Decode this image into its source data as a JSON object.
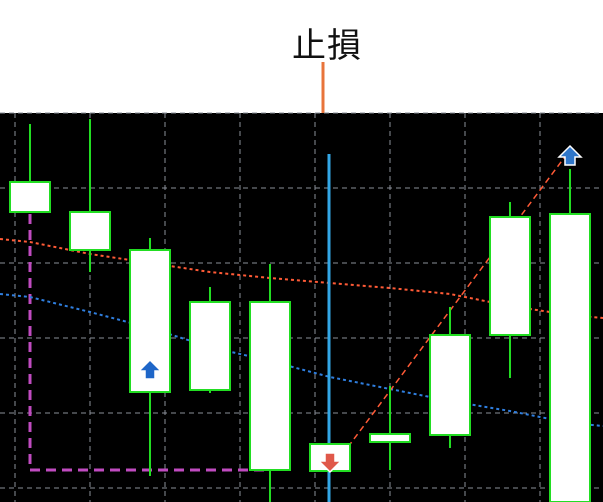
{
  "annotation": {
    "label": "止損",
    "arrow_color": "#e8743b"
  },
  "chart_data": {
    "type": "candlestick",
    "title": "",
    "xlabel": "",
    "ylabel": "",
    "ylim": [
      0,
      380
    ],
    "grid": true,
    "background": "#000000",
    "grid_color": "#8a8f99",
    "candle_border_color": "#22dd22",
    "candle_fill_color": "#ffffff",
    "wick_color": "#22dd22",
    "x": [
      1,
      2,
      3,
      4,
      5,
      6,
      7,
      8,
      9,
      10
    ],
    "candles": [
      {
        "x": 1,
        "open": 320,
        "close": 290,
        "high": 378,
        "low": 290
      },
      {
        "x": 2,
        "open": 290,
        "close": 252,
        "high": 383,
        "low": 230
      },
      {
        "x": 3,
        "open": 252,
        "close": 110,
        "high": 264,
        "low": 26
      },
      {
        "x": 4,
        "open": 200,
        "close": 112,
        "high": 215,
        "low": 109
      },
      {
        "x": 5,
        "open": 200,
        "close": 32,
        "high": 238,
        "low": 0
      },
      {
        "x": 6,
        "open": 58,
        "close": 31,
        "high": 58,
        "low": 31
      },
      {
        "x": 7,
        "open": 68,
        "close": 60,
        "high": 116,
        "low": 32
      },
      {
        "x": 8,
        "open": 167,
        "close": 67,
        "high": 195,
        "low": 54
      },
      {
        "x": 9,
        "open": 285,
        "close": 167,
        "high": 300,
        "low": 124
      },
      {
        "x": 10,
        "open": 288,
        "close": 0,
        "high": 333,
        "low": 0
      }
    ],
    "series": [
      {
        "color": "#ff5a36",
        "style": "dashed",
        "values": [
          260,
          248,
          239,
          230,
          224,
          219,
          214,
          208,
          196,
          187
        ]
      },
      {
        "color": "#2f7fe0",
        "style": "dashed",
        "values": [
          205,
          190,
          174,
          155,
          141,
          125,
          113,
          101,
          91,
          79
        ]
      }
    ],
    "markers": [
      {
        "type": "up-arrow",
        "x": 3,
        "y": 132,
        "color": "#1e66c8"
      },
      {
        "type": "down-arrow",
        "x": 6,
        "y": 40,
        "color": "#e0584a"
      },
      {
        "type": "up-arrow",
        "x": 10,
        "y": 346,
        "color": "#2f76c9"
      }
    ],
    "vertical_line": {
      "x": 6,
      "color": "#33a7e6"
    },
    "range_box": {
      "x_start": 1,
      "x_end": 5,
      "y_top": 320,
      "y_bottom": 32,
      "color": "#c04bc0"
    },
    "trend_line": {
      "x_start": 6,
      "x_end": 10,
      "y_start": 31,
      "y_end": 352,
      "color": "#ff5a36"
    }
  }
}
